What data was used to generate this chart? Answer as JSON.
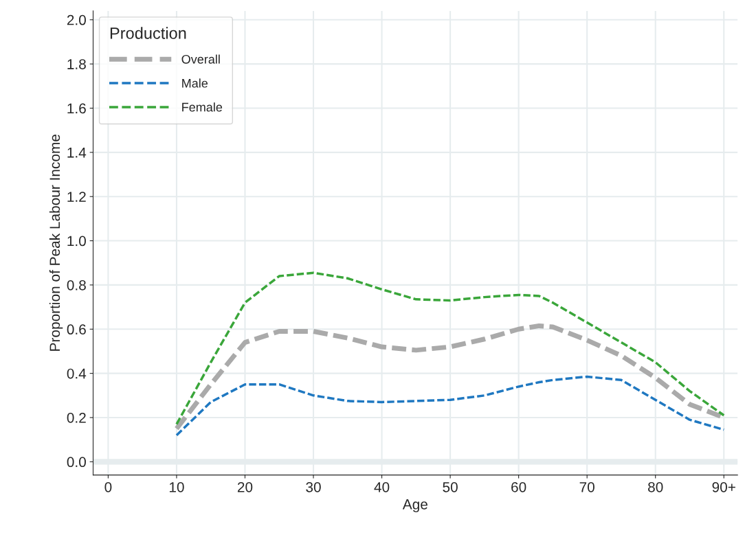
{
  "chart_data": {
    "type": "line",
    "xlabel": "Age",
    "ylabel": "Proportion of Peak Labour Income",
    "legend_title": "Production",
    "x": [
      10,
      15,
      20,
      25,
      30,
      35,
      40,
      45,
      50,
      55,
      60,
      63,
      65,
      70,
      75,
      80,
      85,
      90
    ],
    "series": [
      {
        "name": "Overall",
        "color": "#aaaaaa",
        "values": [
          0.15,
          0.35,
          0.54,
          0.59,
          0.59,
          0.56,
          0.52,
          0.505,
          0.52,
          0.555,
          0.6,
          0.615,
          0.61,
          0.55,
          0.48,
          0.38,
          0.26,
          0.2
        ]
      },
      {
        "name": "Male",
        "color": "#1f78c1",
        "values": [
          0.12,
          0.27,
          0.35,
          0.35,
          0.3,
          0.275,
          0.27,
          0.275,
          0.28,
          0.3,
          0.34,
          0.36,
          0.37,
          0.385,
          0.37,
          0.28,
          0.19,
          0.145
        ]
      },
      {
        "name": "Female",
        "color": "#3aa63a",
        "values": [
          0.17,
          0.45,
          0.72,
          0.84,
          0.855,
          0.83,
          0.78,
          0.735,
          0.73,
          0.745,
          0.755,
          0.75,
          0.72,
          0.63,
          0.54,
          0.45,
          0.32,
          0.21
        ]
      }
    ],
    "xlim": [
      -2.2,
      92
    ],
    "ylim": [
      -0.06,
      2.04
    ],
    "xticks": [
      0,
      10,
      20,
      30,
      40,
      50,
      60,
      70,
      80,
      {
        "value": 90,
        "label": "90+"
      }
    ],
    "yticks": [
      {
        "value": 0,
        "label": "0.0"
      },
      {
        "value": 0.2,
        "label": "0.2"
      },
      {
        "value": 0.4,
        "label": "0.4"
      },
      {
        "value": 0.6,
        "label": "0.6"
      },
      {
        "value": 0.8,
        "label": "0.8"
      },
      {
        "value": 1.0,
        "label": "1.0"
      },
      {
        "value": 1.2,
        "label": "1.2"
      },
      {
        "value": 1.4,
        "label": "1.4"
      },
      {
        "value": 1.6,
        "label": "1.6"
      },
      {
        "value": 1.8,
        "label": "1.8"
      },
      {
        "value": 2.0,
        "label": "2.0"
      }
    ],
    "ref_lines": [
      {
        "axis": "y",
        "value": 0,
        "color": "#e6ecee"
      }
    ],
    "grid": true,
    "legend": "top left",
    "line_style": "dashed",
    "marker": "none"
  }
}
